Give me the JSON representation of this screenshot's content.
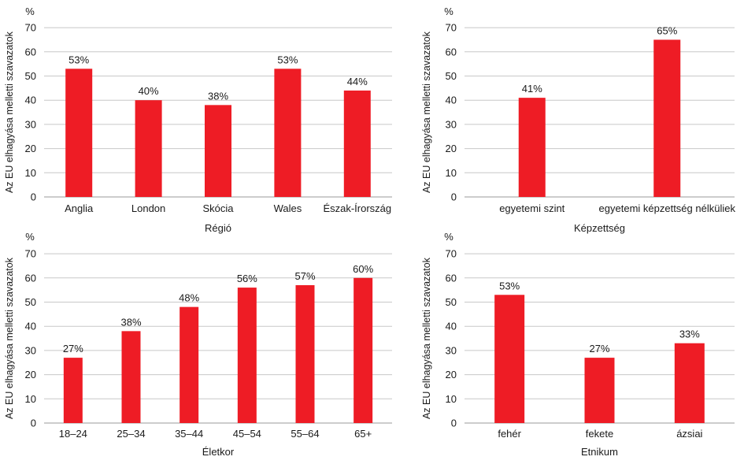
{
  "chart_data": [
    {
      "type": "bar",
      "unit": "%",
      "ylabel": "Az EU elhagyása melletti szavazatok",
      "xlabel": "Régió",
      "categories": [
        "Anglia",
        "London",
        "Skócia",
        "Wales",
        "Észak-Írország"
      ],
      "values": [
        53,
        40,
        38,
        53,
        44
      ],
      "value_labels": [
        "53%",
        "40%",
        "38%",
        "53%",
        "44%"
      ],
      "ylim": [
        0,
        70
      ],
      "yticks": [
        0,
        10,
        20,
        30,
        40,
        50,
        60,
        70
      ],
      "grid": true,
      "bar_color": "#ee1c25"
    },
    {
      "type": "bar",
      "unit": "%",
      "ylabel": "Az EU elhagyása melletti szavazatok",
      "xlabel": "Képzettség",
      "categories": [
        "egyetemi szint",
        "egyetemi képzettség nélküliek"
      ],
      "values": [
        41,
        65
      ],
      "value_labels": [
        "41%",
        "65%"
      ],
      "ylim": [
        0,
        70
      ],
      "yticks": [
        0,
        10,
        20,
        30,
        40,
        50,
        60,
        70
      ],
      "grid": true,
      "bar_color": "#ee1c25"
    },
    {
      "type": "bar",
      "unit": "%",
      "ylabel": "Az EU elhagyása melletti szavazatok",
      "xlabel": "Életkor",
      "categories": [
        "18–24",
        "25–34",
        "35–44",
        "45–54",
        "55–64",
        "65+"
      ],
      "values": [
        27,
        38,
        48,
        56,
        57,
        60
      ],
      "value_labels": [
        "27%",
        "38%",
        "48%",
        "56%",
        "57%",
        "60%"
      ],
      "ylim": [
        0,
        70
      ],
      "yticks": [
        0,
        10,
        20,
        30,
        40,
        50,
        60,
        70
      ],
      "grid": true,
      "bar_color": "#ee1c25"
    },
    {
      "type": "bar",
      "unit": "%",
      "ylabel": "Az EU elhagyása melletti szavazatok",
      "xlabel": "Etnikum",
      "categories": [
        "fehér",
        "fekete",
        "ázsiai"
      ],
      "values": [
        53,
        27,
        33
      ],
      "value_labels": [
        "53%",
        "27%",
        "33%"
      ],
      "ylim": [
        0,
        70
      ],
      "yticks": [
        0,
        10,
        20,
        30,
        40,
        50,
        60,
        70
      ],
      "grid": true,
      "bar_color": "#ee1c25"
    }
  ]
}
